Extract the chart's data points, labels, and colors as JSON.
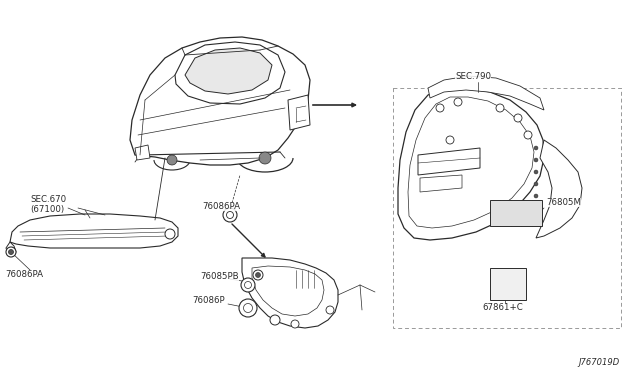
{
  "background_color": "#ffffff",
  "line_color": "#2a2a2a",
  "diagram_id": "J767019D",
  "figsize": [
    6.4,
    3.72
  ],
  "dpi": 100,
  "labels": {
    "sec670": "SEC.670\n(67100)",
    "lbl_76086pa_upper": "76086PA",
    "lbl_76086pa_lower": "76086PA",
    "lbl_76085pb": "76085PB",
    "lbl_76086p": "76086P",
    "sec790": "SEC.790",
    "lbl_76805m": "76805M",
    "lbl_67861c": "67861+C"
  }
}
